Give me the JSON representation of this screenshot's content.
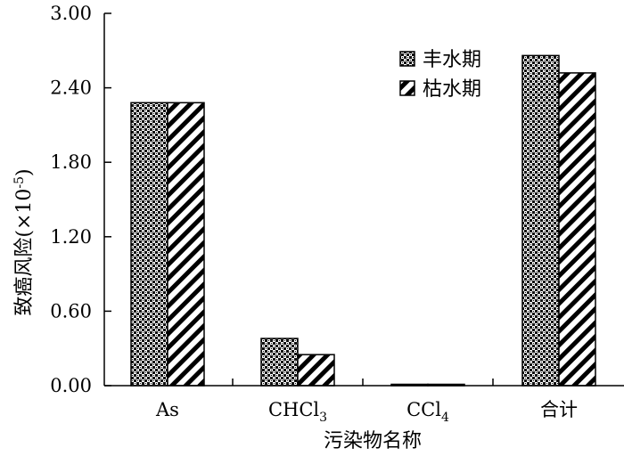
{
  "chart_data": {
    "type": "bar",
    "categories": [
      "As",
      "CHCl3",
      "CCl4",
      "合计"
    ],
    "category_labels": [
      {
        "main": "As",
        "sub": ""
      },
      {
        "main": "CHCl",
        "sub": "3"
      },
      {
        "main": "CCl",
        "sub": "4"
      },
      {
        "main": "合计",
        "sub": ""
      }
    ],
    "series": [
      {
        "name": "丰水期",
        "values": [
          2.28,
          0.38,
          0.01,
          2.66
        ],
        "pattern": "checker"
      },
      {
        "name": "枯水期",
        "values": [
          2.28,
          0.25,
          0.01,
          2.52
        ],
        "pattern": "diagonal"
      }
    ],
    "title": "",
    "xlabel": "污染物名称",
    "ylabel_prefix": "致癌风险(×10",
    "ylabel_exp": "-5",
    "ylabel_suffix": ")",
    "ylim": [
      0,
      3.0
    ],
    "yticks": [
      "0.00",
      "0.60",
      "1.20",
      "1.80",
      "2.40",
      "3.00"
    ],
    "ytick_values": [
      0,
      0.6,
      1.2,
      1.8,
      2.4,
      3.0
    ],
    "legend_position": "top-right",
    "grid": false
  }
}
